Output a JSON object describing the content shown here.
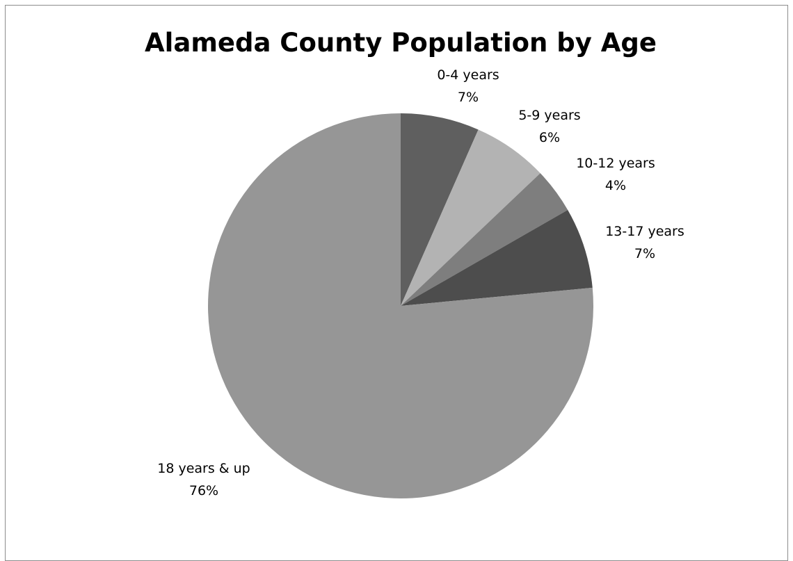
{
  "chart_data": {
    "type": "pie",
    "title": "Alameda County Population by Age",
    "slices": [
      {
        "label": "0-4 years",
        "percent_label": "7%",
        "value": 6.6,
        "color": "#5f5f5f"
      },
      {
        "label": "5-9 years",
        "percent_label": "6%",
        "value": 6.3,
        "color": "#b3b3b3"
      },
      {
        "label": "10-12 years",
        "percent_label": "4%",
        "value": 3.8,
        "color": "#7e7e7e"
      },
      {
        "label": "13-17 years",
        "percent_label": "7%",
        "value": 6.8,
        "color": "#4d4d4d"
      },
      {
        "label": "18 years & up",
        "percent_label": "76%",
        "value": 76.5,
        "color": "#969696"
      }
    ],
    "start_angle": "12 o'clock",
    "direction": "clockwise",
    "legend": "none"
  }
}
